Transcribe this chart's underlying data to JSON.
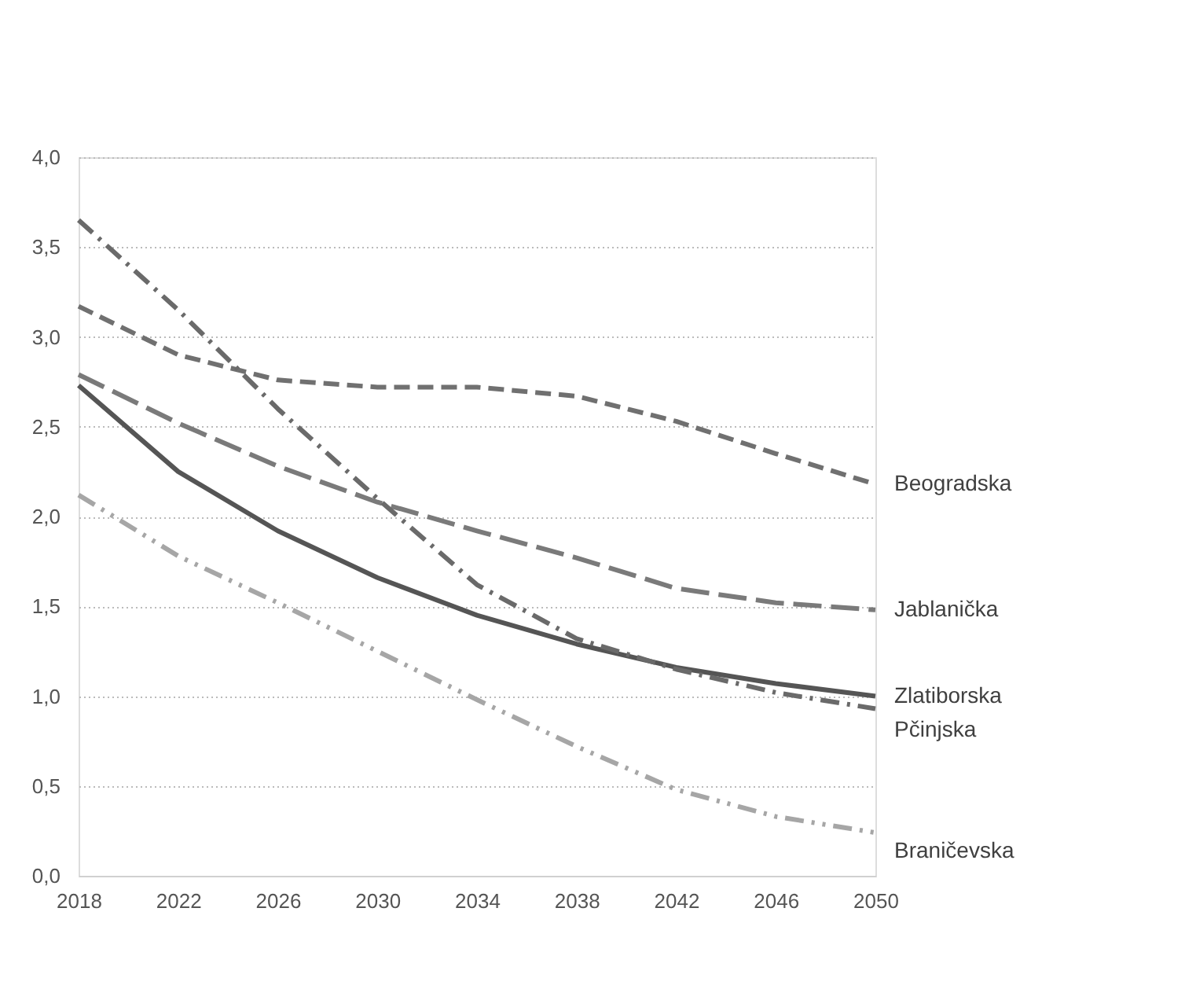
{
  "chart_data": {
    "type": "line",
    "x": [
      2018,
      2022,
      2026,
      2030,
      2034,
      2038,
      2042,
      2046,
      2050
    ],
    "series": [
      {
        "name": "Beogradska",
        "color": "#707070",
        "line_style": "dashed",
        "values": [
          3.17,
          2.9,
          2.76,
          2.72,
          2.72,
          2.67,
          2.53,
          2.35,
          2.18
        ]
      },
      {
        "name": "Jablanička",
        "color": "#7a7a7a",
        "line_style": "dashed",
        "values": [
          2.79,
          2.52,
          2.28,
          2.08,
          1.92,
          1.77,
          1.6,
          1.52,
          1.48
        ]
      },
      {
        "name": "Zlatiborska",
        "color": "#555555",
        "line_style": "solid",
        "values": [
          2.73,
          2.25,
          1.92,
          1.66,
          1.45,
          1.29,
          1.16,
          1.07,
          1.0
        ]
      },
      {
        "name": "Pčinjska",
        "color": "#6a6a6a",
        "line_style": "dashed",
        "values": [
          3.65,
          3.15,
          2.6,
          2.1,
          1.62,
          1.32,
          1.15,
          1.02,
          0.93
        ]
      },
      {
        "name": "Braničevska",
        "color": "#a6a6a6",
        "line_style": "dashed",
        "values": [
          2.12,
          1.78,
          1.52,
          1.25,
          0.98,
          0.72,
          0.48,
          0.33,
          0.24
        ]
      }
    ],
    "xlim": [
      2018,
      2050
    ],
    "xticks": [
      2018,
      2022,
      2026,
      2030,
      2034,
      2038,
      2042,
      2046,
      2050
    ],
    "ylim": [
      0,
      4.0
    ],
    "yticks": [
      {
        "value": 0,
        "label": "0,0"
      },
      {
        "value": 0.5,
        "label": "0,5"
      },
      {
        "value": 1.0,
        "label": "1,0"
      },
      {
        "value": 1.5,
        "label": "1,5"
      },
      {
        "value": 2.0,
        "label": "2,0"
      },
      {
        "value": 2.5,
        "label": "2,5"
      },
      {
        "value": 3.0,
        "label": "3,0"
      },
      {
        "value": 3.5,
        "label": "3,5"
      },
      {
        "value": 4.0,
        "label": "4,0"
      }
    ],
    "grid": "y",
    "legend": false,
    "marker": "none"
  }
}
